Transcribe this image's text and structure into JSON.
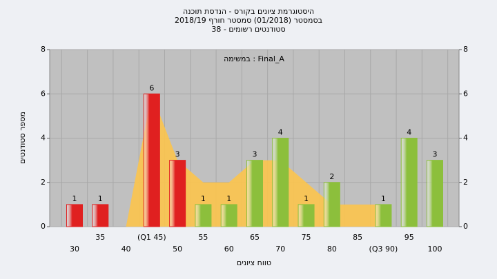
{
  "chart_data": {
    "type": "bar",
    "title": [
      "היסטוגרמת ציונים בקורס - הנדסת תוכנה",
      "בסמסטר (01/2018) סמסטר חורף 2018/19",
      "סטודנטים רשומים - 38"
    ],
    "annotation": "Final_A : במשימה",
    "x_label": "טווח ציונים",
    "y_label": "מספר סטודנטים",
    "categories": [
      "30",
      "35",
      "40",
      "(Q1 45)",
      "50",
      "55",
      "60",
      "65",
      "70",
      "75",
      "80",
      "85",
      "(Q3 90)",
      "95",
      "100"
    ],
    "values": [
      1,
      1,
      0,
      6,
      3,
      1,
      1,
      3,
      4,
      1,
      2,
      0,
      1,
      4,
      3
    ],
    "value_labels": [
      "1",
      "1",
      null,
      "6",
      "3",
      "1",
      "1",
      "3",
      "4",
      "1",
      "2",
      null,
      "1",
      "4",
      "3"
    ],
    "colors": [
      "#e02020",
      "#e02020",
      "#e02020",
      "#e02020",
      "#e02020",
      "#8cbf3c",
      "#8cbf3c",
      "#8cbf3c",
      "#8cbf3c",
      "#8cbf3c",
      "#8cbf3c",
      "#8cbf3c",
      "#8cbf3c",
      "#8cbf3c",
      "#8cbf3c"
    ],
    "area": {
      "color": "#fcc44c",
      "values": [
        null,
        null,
        0,
        6,
        3,
        2,
        2,
        3,
        3,
        2,
        1,
        1,
        1,
        null,
        null
      ]
    },
    "ylim": [
      0,
      8
    ],
    "yticks": [
      0,
      2,
      4,
      6,
      8
    ],
    "y2lim": [
      0,
      8
    ],
    "y2ticks": [
      0,
      2,
      4,
      6,
      8
    ],
    "grid": true
  }
}
